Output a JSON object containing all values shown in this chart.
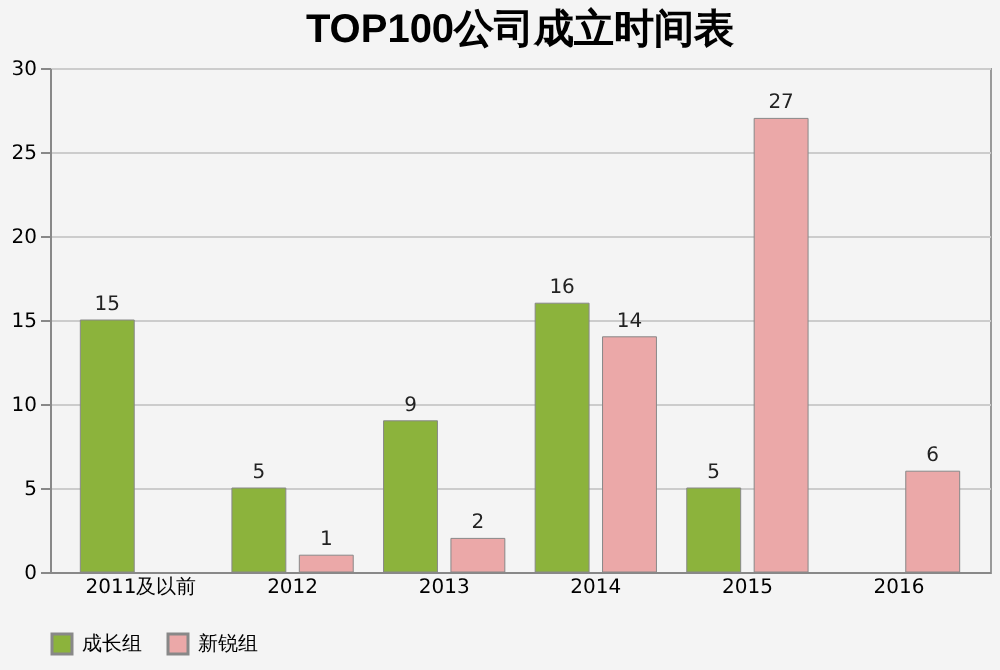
{
  "chart_data": {
    "type": "bar",
    "title": "TOP100公司成立时间表",
    "categories": [
      "2011及以前",
      "2012",
      "2013",
      "2014",
      "2015",
      "2016"
    ],
    "series": [
      {
        "name": "成长组",
        "color": "#8cb33c",
        "values": [
          15,
          5,
          9,
          16,
          5,
          null
        ]
      },
      {
        "name": "新锐组",
        "color": "#eba8a8",
        "values": [
          null,
          1,
          2,
          14,
          27,
          6
        ]
      }
    ],
    "ylim": [
      0,
      30
    ],
    "yticks": [
      0,
      5,
      10,
      15,
      20,
      25,
      30
    ],
    "grid": "y",
    "legend": "bottom",
    "data_labels": true
  }
}
